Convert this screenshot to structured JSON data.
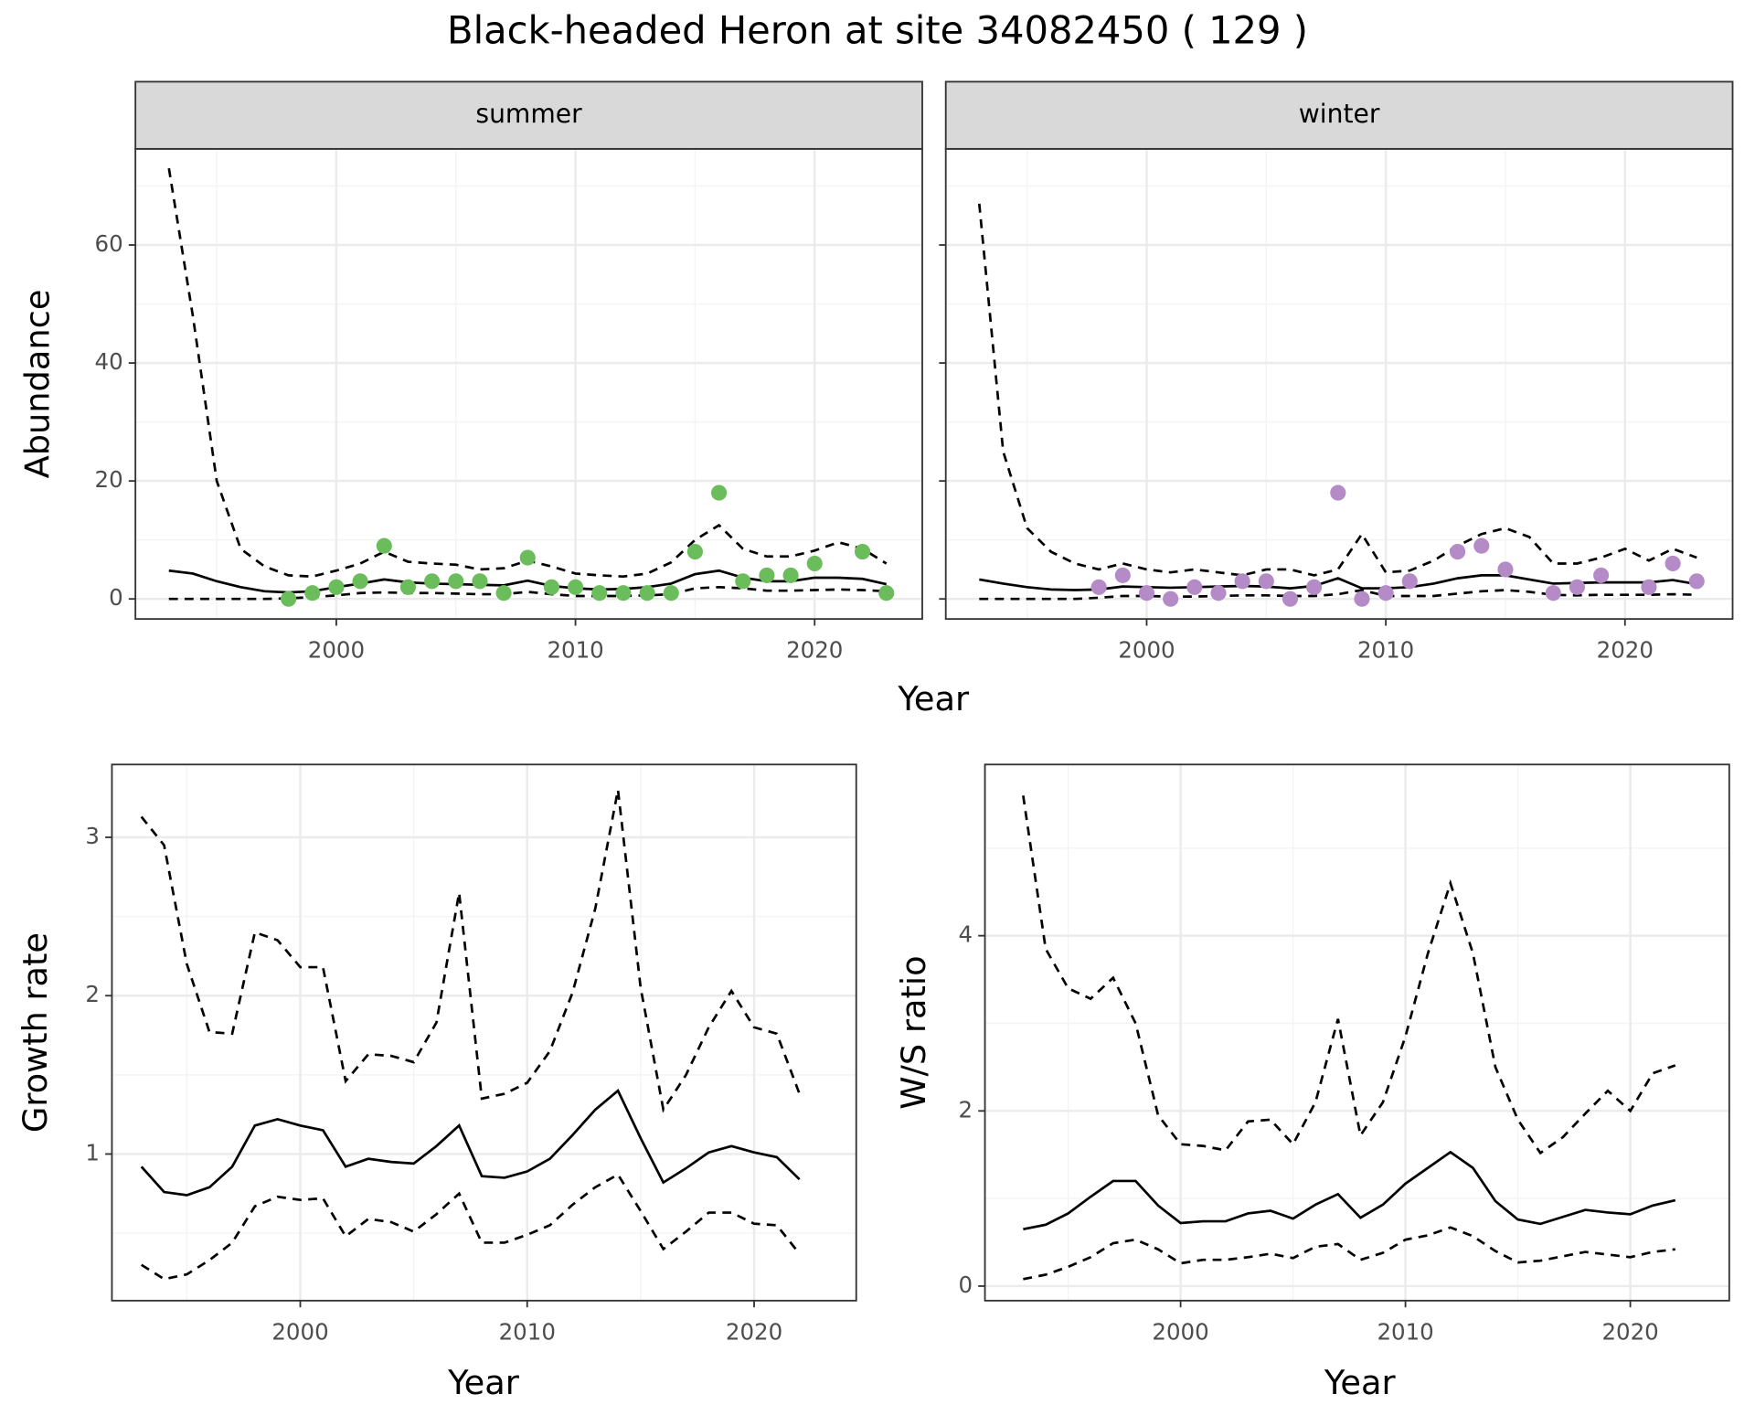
{
  "title": "Black-headed Heron at site 34082450 ( 129 )",
  "chart_data": [
    {
      "type": "line",
      "facet": "summer",
      "ylabel": "Abundance",
      "xlabel": "Year",
      "x": [
        1993,
        1994,
        1995,
        1996,
        1997,
        1998,
        1999,
        2000,
        2001,
        2002,
        2003,
        2004,
        2005,
        2006,
        2007,
        2008,
        2009,
        2010,
        2011,
        2012,
        2013,
        2014,
        2015,
        2016,
        2017,
        2018,
        2019,
        2020,
        2021,
        2022,
        2023
      ],
      "series": [
        {
          "style": "solid",
          "color": "#000000",
          "values": [
            4.8,
            4.3,
            3,
            2,
            1.3,
            1.1,
            1.3,
            2,
            2.6,
            3.3,
            2.8,
            2.6,
            2.5,
            2.4,
            2.3,
            3.1,
            2.2,
            1.8,
            1.6,
            1.7,
            2,
            2.6,
            4.2,
            4.8,
            3.6,
            3,
            3,
            3.6,
            3.6,
            3.4,
            2.5
          ]
        },
        {
          "style": "dashed",
          "color": "#000000",
          "values": [
            73,
            48,
            20,
            8.5,
            5.5,
            4,
            3.8,
            4.8,
            6,
            8,
            6.3,
            6,
            5.8,
            5,
            5.2,
            6.5,
            5.5,
            4.3,
            4,
            3.8,
            4.3,
            6.2,
            10,
            12.5,
            8.5,
            7.2,
            7.2,
            8.2,
            9.6,
            8.5,
            6
          ]
        },
        {
          "style": "dashed",
          "color": "#000000",
          "values": [
            0,
            0,
            0,
            0,
            0,
            0.1,
            0.3,
            0.6,
            1,
            1.1,
            1,
            1,
            0.9,
            0.8,
            0.8,
            1.2,
            0.8,
            0.5,
            0.5,
            0.5,
            0.6,
            0.8,
            1.8,
            2,
            1.8,
            1.4,
            1.4,
            1.5,
            1.6,
            1.5,
            1.3
          ]
        }
      ],
      "points": {
        "color": "#6bbd5b",
        "x": [
          1998,
          1999,
          2000,
          2001,
          2002,
          2003,
          2004,
          2005,
          2006,
          2007,
          2008,
          2009,
          2010,
          2011,
          2012,
          2013,
          2014,
          2015,
          2016,
          2017,
          2018,
          2019,
          2020,
          2022,
          2023
        ],
        "values": [
          0,
          1,
          2,
          3,
          9,
          2,
          3,
          3,
          3,
          1,
          7,
          2,
          2,
          1,
          1,
          1,
          1,
          8,
          18,
          3,
          4,
          4,
          6,
          8,
          1
        ]
      },
      "xlim": [
        1991.6,
        2024.5
      ],
      "ylim": [
        -3.4,
        76.3
      ],
      "xticks": [
        2000,
        2010,
        2020
      ],
      "yticks": [
        0,
        20,
        40,
        60
      ],
      "xminor": [
        1995,
        2005,
        2015
      ],
      "yminor": [
        10,
        30,
        50,
        70
      ],
      "grid": true
    },
    {
      "type": "line",
      "facet": "winter",
      "x": [
        1993,
        1994,
        1995,
        1996,
        1997,
        1998,
        1999,
        2000,
        2001,
        2002,
        2003,
        2004,
        2005,
        2006,
        2007,
        2008,
        2009,
        2010,
        2011,
        2012,
        2013,
        2014,
        2015,
        2016,
        2017,
        2018,
        2019,
        2020,
        2021,
        2022,
        2023
      ],
      "series": [
        {
          "style": "solid",
          "color": "#000000",
          "values": [
            3.3,
            2.6,
            2,
            1.6,
            1.5,
            1.6,
            2.1,
            2,
            1.9,
            2,
            2.1,
            2.2,
            2.1,
            1.8,
            2.2,
            3.5,
            1.8,
            1.8,
            2,
            2.6,
            3.5,
            4,
            4,
            3.3,
            2.6,
            2.7,
            2.8,
            2.8,
            2.8,
            3.2,
            2.5
          ]
        },
        {
          "style": "dashed",
          "color": "#000000",
          "values": [
            67,
            25,
            12,
            8,
            6,
            5,
            6,
            5,
            4.5,
            5,
            4.5,
            4,
            5,
            5,
            4,
            5,
            11,
            4.5,
            4.8,
            6.5,
            9,
            11,
            12,
            10.5,
            6,
            6,
            7,
            8.5,
            6.5,
            8.5,
            7
          ]
        },
        {
          "style": "dashed",
          "color": "#000000",
          "values": [
            0,
            0,
            0,
            0,
            0,
            0.2,
            0.5,
            0.5,
            0.4,
            0.4,
            0.5,
            0.6,
            0.6,
            0.5,
            0.5,
            0.8,
            1.5,
            0.5,
            0.5,
            0.5,
            0.9,
            1.3,
            1.5,
            1.2,
            0.7,
            0.6,
            0.7,
            0.7,
            0.7,
            0.8,
            0.7
          ]
        }
      ],
      "points": {
        "color": "#b48ac7",
        "x": [
          1998,
          1999,
          2000,
          2001,
          2002,
          2003,
          2004,
          2005,
          2006,
          2007,
          2008,
          2009,
          2010,
          2011,
          2013,
          2014,
          2015,
          2017,
          2018,
          2019,
          2021,
          2022,
          2023
        ],
        "values": [
          2,
          4,
          1,
          0,
          2,
          1,
          3,
          3,
          0,
          2,
          18,
          0,
          1,
          3,
          8,
          9,
          5,
          1,
          2,
          4,
          2,
          6,
          3
        ]
      },
      "xlim": [
        1991.6,
        2024.5
      ],
      "ylim": [
        -3.4,
        76.3
      ],
      "xticks": [
        2000,
        2010,
        2020
      ],
      "yticks": [
        0,
        20,
        40,
        60
      ],
      "xminor": [
        1995,
        2005,
        2015
      ],
      "yminor": [
        10,
        30,
        50,
        70
      ],
      "grid": true
    },
    {
      "type": "line",
      "ylabel": "Growth rate",
      "xlabel": "Year",
      "x": [
        1993,
        1994,
        1995,
        1996,
        1997,
        1998,
        1999,
        2000,
        2001,
        2002,
        2003,
        2004,
        2005,
        2006,
        2007,
        2008,
        2009,
        2010,
        2011,
        2012,
        2013,
        2014,
        2015,
        2016,
        2017,
        2018,
        2019,
        2020,
        2021,
        2022
      ],
      "series": [
        {
          "style": "solid",
          "color": "#000000",
          "values": [
            0.92,
            0.76,
            0.74,
            0.79,
            0.92,
            1.18,
            1.22,
            1.18,
            1.15,
            0.92,
            0.97,
            0.95,
            0.94,
            1.05,
            1.18,
            0.86,
            0.85,
            0.89,
            0.97,
            1.12,
            1.28,
            1.4,
            1.1,
            0.82,
            0.91,
            1.01,
            1.05,
            1.01,
            0.98,
            0.84
          ]
        },
        {
          "style": "dashed",
          "color": "#000000",
          "values": [
            3.13,
            2.95,
            2.2,
            1.77,
            1.76,
            2.4,
            2.35,
            2.18,
            2.18,
            1.46,
            1.63,
            1.62,
            1.58,
            1.83,
            2.65,
            1.35,
            1.38,
            1.45,
            1.65,
            2.02,
            2.55,
            3.3,
            2.05,
            1.28,
            1.5,
            1.8,
            2.03,
            1.8,
            1.76,
            1.38
          ]
        },
        {
          "style": "dashed",
          "color": "#000000",
          "values": [
            0.3,
            0.21,
            0.24,
            0.33,
            0.44,
            0.67,
            0.73,
            0.71,
            0.72,
            0.48,
            0.59,
            0.57,
            0.51,
            0.62,
            0.75,
            0.44,
            0.44,
            0.49,
            0.55,
            0.68,
            0.79,
            0.87,
            0.64,
            0.4,
            0.51,
            0.63,
            0.63,
            0.56,
            0.55,
            0.37
          ]
        }
      ],
      "xlim": [
        1991.7,
        2024.5
      ],
      "ylim": [
        0.074,
        3.46
      ],
      "xticks": [
        2000,
        2010,
        2020
      ],
      "yticks": [
        1,
        2,
        3
      ],
      "xminor": [
        1995,
        2005,
        2015
      ],
      "yminor": [
        0.5,
        1.5,
        2.5
      ],
      "grid": true
    },
    {
      "type": "line",
      "ylabel": "W/S ratio",
      "xlabel": "Year",
      "x": [
        1993,
        1994,
        1995,
        1996,
        1997,
        1998,
        1999,
        2000,
        2001,
        2002,
        2003,
        2004,
        2005,
        2006,
        2007,
        2008,
        2009,
        2010,
        2011,
        2012,
        2013,
        2014,
        2015,
        2016,
        2017,
        2018,
        2019,
        2020,
        2021,
        2022
      ],
      "series": [
        {
          "style": "solid",
          "color": "#000000",
          "values": [
            0.65,
            0.7,
            0.83,
            1.02,
            1.2,
            1.2,
            0.92,
            0.72,
            0.74,
            0.74,
            0.83,
            0.86,
            0.77,
            0.93,
            1.05,
            0.78,
            0.93,
            1.17,
            1.35,
            1.53,
            1.35,
            0.97,
            0.76,
            0.71,
            0.79,
            0.87,
            0.84,
            0.82,
            0.92,
            0.98
          ]
        },
        {
          "style": "dashed",
          "color": "#000000",
          "values": [
            5.6,
            3.85,
            3.4,
            3.28,
            3.52,
            3.0,
            1.95,
            1.62,
            1.6,
            1.55,
            1.88,
            1.9,
            1.62,
            2.1,
            3.05,
            1.72,
            2.1,
            2.85,
            3.8,
            4.6,
            3.8,
            2.5,
            1.9,
            1.52,
            1.7,
            1.97,
            2.23,
            2.0,
            2.43,
            2.52
          ]
        },
        {
          "style": "dashed",
          "color": "#000000",
          "values": [
            0.08,
            0.13,
            0.22,
            0.33,
            0.49,
            0.53,
            0.42,
            0.26,
            0.3,
            0.3,
            0.33,
            0.37,
            0.32,
            0.45,
            0.48,
            0.3,
            0.38,
            0.53,
            0.58,
            0.67,
            0.57,
            0.4,
            0.27,
            0.29,
            0.34,
            0.39,
            0.36,
            0.33,
            0.39,
            0.42
          ]
        }
      ],
      "xlim": [
        1991.3,
        2024.4
      ],
      "ylim": [
        -0.166,
        5.955
      ],
      "xticks": [
        2000,
        2010,
        2020
      ],
      "yticks": [
        0,
        2,
        4
      ],
      "xminor": [
        1995,
        2005,
        2015
      ],
      "yminor": [
        1,
        3,
        5
      ],
      "grid": true
    }
  ]
}
